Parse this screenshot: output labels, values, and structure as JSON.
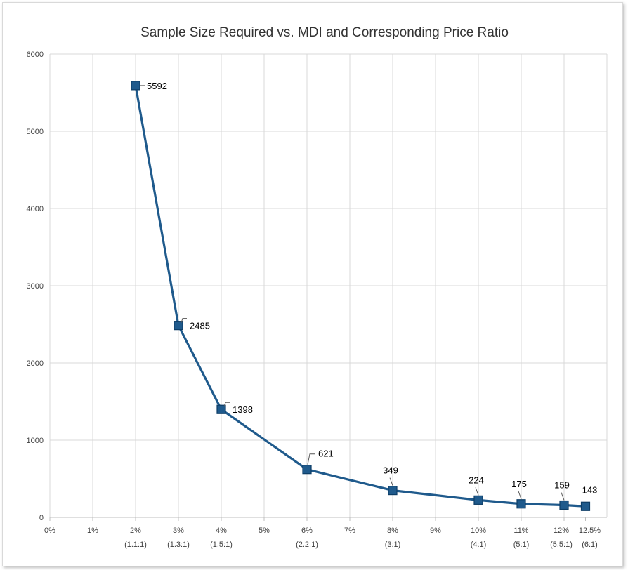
{
  "chart_data": {
    "type": "line",
    "title": "Sample Size Required vs. MDI and Corresponding Price Ratio",
    "xlabel": "",
    "ylabel": "",
    "xlim": [
      0,
      13
    ],
    "ylim": [
      0,
      6000
    ],
    "grid": true,
    "legend": "none",
    "y_ticks": [
      "0",
      "1000",
      "2000",
      "3000",
      "4000",
      "5000",
      "6000"
    ],
    "x_ticks": [
      {
        "value": 0,
        "label": "0%",
        "sub": ""
      },
      {
        "value": 1,
        "label": "1%",
        "sub": ""
      },
      {
        "value": 2,
        "label": "2%",
        "sub": "(1.1:1)"
      },
      {
        "value": 3,
        "label": "3%",
        "sub": "(1.3:1)"
      },
      {
        "value": 4,
        "label": "4%",
        "sub": "(1.5:1)"
      },
      {
        "value": 5,
        "label": "5%",
        "sub": ""
      },
      {
        "value": 6,
        "label": "6%",
        "sub": "(2.2:1)"
      },
      {
        "value": 7,
        "label": "7%",
        "sub": ""
      },
      {
        "value": 8,
        "label": "8%",
        "sub": "(3:1)"
      },
      {
        "value": 9,
        "label": "9%",
        "sub": ""
      },
      {
        "value": 10,
        "label": "10%",
        "sub": "(4:1)"
      },
      {
        "value": 11,
        "label": "11%",
        "sub": "(5:1)"
      },
      {
        "value": 12,
        "label": "12%",
        "sub": "(5.5:1)"
      },
      {
        "value": 12.5,
        "label": "12.5%",
        "sub": "(6:1)"
      }
    ],
    "series": [
      {
        "x": [
          2,
          3,
          4,
          6,
          8,
          10,
          11,
          12,
          12.5
        ],
        "values": [
          5592,
          2485,
          1398,
          621,
          349,
          224,
          175,
          159,
          143
        ],
        "labels": [
          "5592",
          "2485",
          "1398",
          "621",
          "349",
          "224",
          "175",
          "159",
          "143"
        ],
        "color": "#1f5a8c"
      }
    ]
  }
}
